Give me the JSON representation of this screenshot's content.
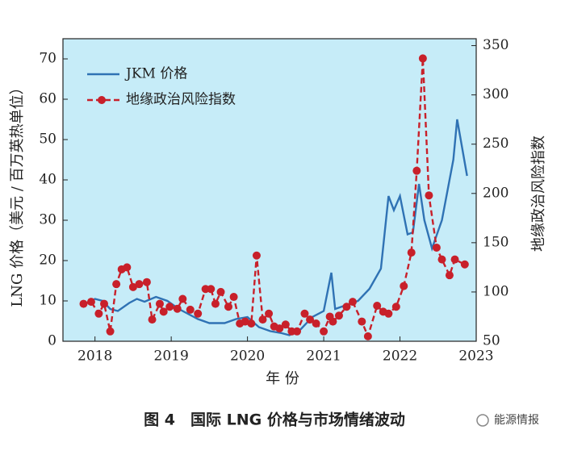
{
  "chart_data": {
    "type": "line",
    "caption": "图 4　国际 LNG 价格与市场情绪波动",
    "watermark": "能源情报",
    "x_label": "年 份",
    "y_label": "LNG 价格（美元 / 百万英热单位）",
    "y2_label": "地缘政治风险指数",
    "xlim": [
      2017.58,
      2023
    ],
    "xticks": [
      2018,
      2019,
      2020,
      2021,
      2022,
      2023
    ],
    "ylim": [
      0,
      75
    ],
    "yticks": [
      0,
      10,
      20,
      30,
      40,
      50,
      60,
      70
    ],
    "y2lim": [
      50,
      357
    ],
    "y2ticks": [
      50,
      100,
      150,
      200,
      250,
      300,
      350
    ],
    "background": "#c6ecf8",
    "legend": "upper left",
    "series": [
      {
        "name": "JKM 价格",
        "color": "#2f72b4",
        "style": "solid",
        "x": [
          2017.9,
          2018.0,
          2018.1,
          2018.2,
          2018.3,
          2018.45,
          2018.55,
          2018.65,
          2018.8,
          2018.95,
          2019.1,
          2019.2,
          2019.35,
          2019.5,
          2019.7,
          2019.85,
          2020.0,
          2020.15,
          2020.3,
          2020.45,
          2020.55,
          2020.7,
          2020.85,
          2021.0,
          2021.1,
          2021.15,
          2021.3,
          2021.45,
          2021.6,
          2021.75,
          2021.85,
          2021.92,
          2022.0,
          2022.1,
          2022.17,
          2022.25,
          2022.32,
          2022.42,
          2022.55,
          2022.7,
          2022.75,
          2022.88
        ],
        "values": [
          9.5,
          10.5,
          10,
          8,
          7.5,
          9.5,
          10.5,
          9.8,
          11,
          10,
          8,
          7,
          5.5,
          4.5,
          4.5,
          5.5,
          6,
          3.5,
          2.5,
          2,
          1.5,
          3,
          6,
          7.5,
          17,
          8,
          9,
          10,
          13,
          18,
          36,
          32.5,
          36,
          26.5,
          27,
          39,
          30,
          23,
          30,
          45,
          55,
          41
        ]
      },
      {
        "name": "地缘政治风险指数",
        "color": "#c8202a",
        "style": "dashed",
        "axis": "y2",
        "x": [
          2017.85,
          2017.95,
          2018.05,
          2018.12,
          2018.2,
          2018.28,
          2018.35,
          2018.42,
          2018.5,
          2018.58,
          2018.68,
          2018.75,
          2018.85,
          2018.9,
          2018.98,
          2019.08,
          2019.15,
          2019.25,
          2019.35,
          2019.45,
          2019.52,
          2019.58,
          2019.65,
          2019.75,
          2019.82,
          2019.9,
          2019.97,
          2020.05,
          2020.12,
          2020.2,
          2020.28,
          2020.35,
          2020.42,
          2020.5,
          2020.58,
          2020.65,
          2020.75,
          2020.82,
          2020.9,
          2021.0,
          2021.08,
          2021.12,
          2021.2,
          2021.3,
          2021.38,
          2021.5,
          2021.58,
          2021.7,
          2021.78,
          2021.85,
          2021.95,
          2022.05,
          2022.15,
          2022.22,
          2022.3,
          2022.38,
          2022.48,
          2022.55,
          2022.65,
          2022.72,
          2022.85
        ],
        "values": [
          88,
          90,
          78,
          88,
          60,
          108,
          123,
          125,
          105,
          108,
          110,
          72,
          88,
          80,
          85,
          83,
          93,
          82,
          78,
          103,
          103,
          88,
          100,
          85,
          95,
          68,
          70,
          68,
          137,
          72,
          78,
          65,
          63,
          67,
          60,
          60,
          78,
          72,
          68,
          60,
          75,
          70,
          76,
          85,
          90,
          70,
          55,
          86,
          80,
          78,
          85,
          106,
          140,
          223,
          337,
          198,
          145,
          133,
          117,
          133,
          128
        ]
      }
    ]
  }
}
